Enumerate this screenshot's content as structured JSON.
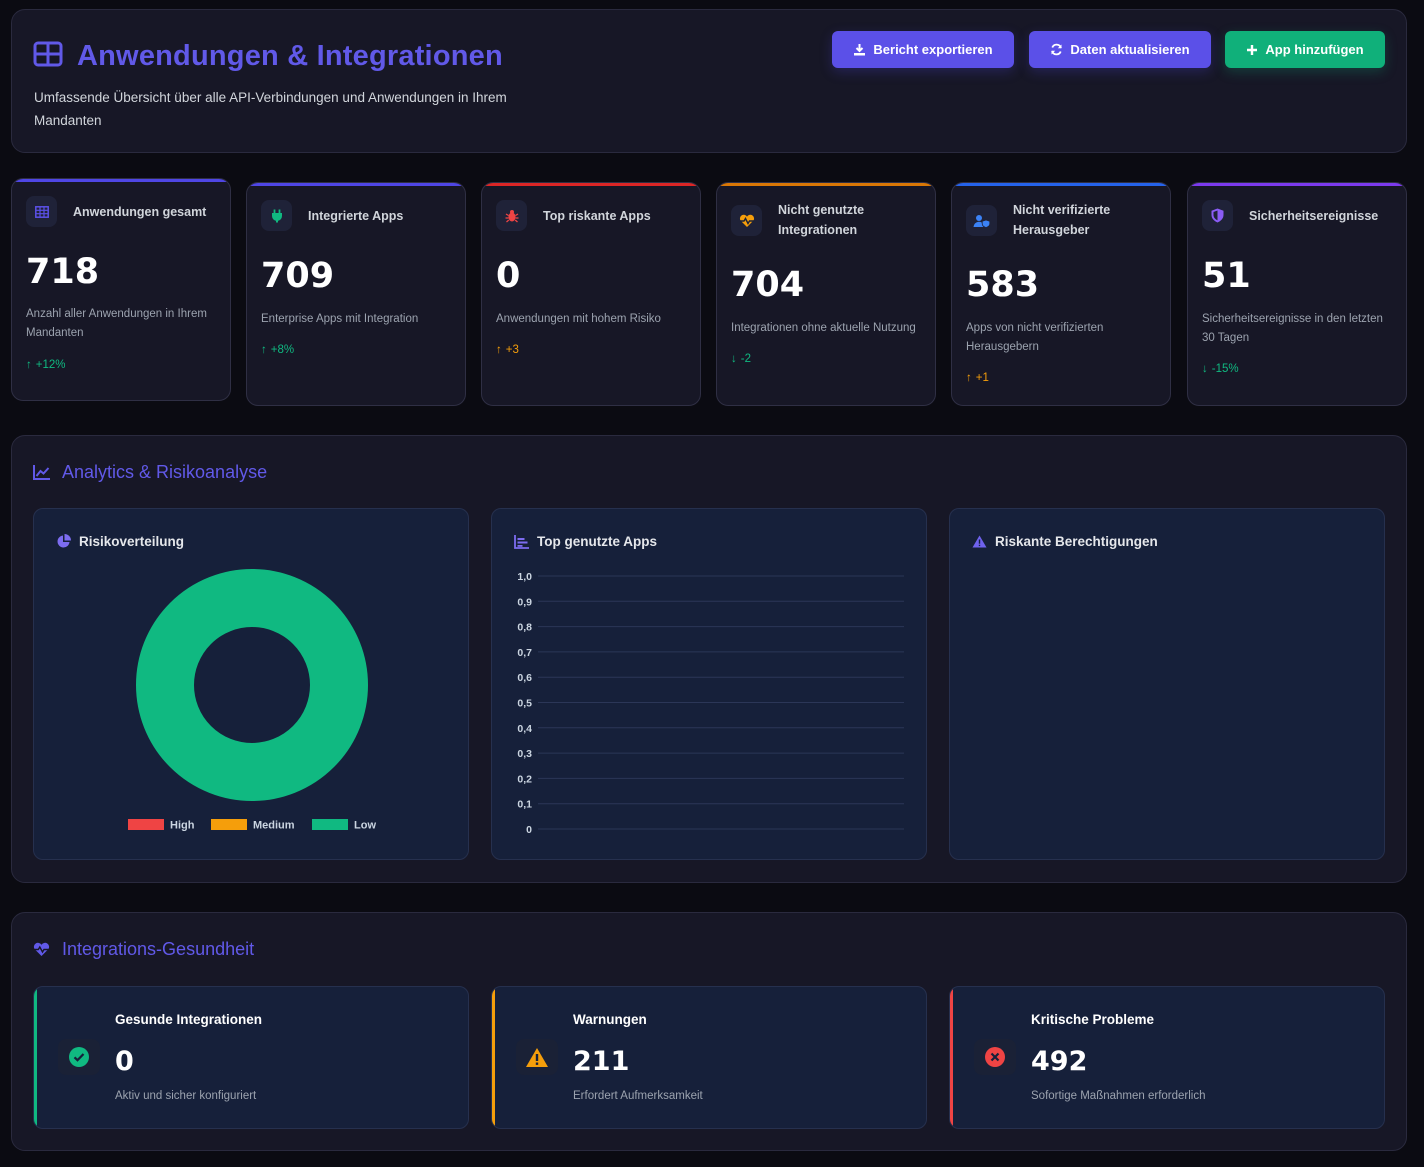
{
  "header": {
    "title": "Anwendungen & Integrationen",
    "subtitle": "Umfassende Übersicht über alle API-Verbindungen und Anwendungen in Ihrem Mandanten",
    "buttons": {
      "export": "Bericht exportieren",
      "refresh": "Daten aktualisieren",
      "add": "App hinzufügen"
    }
  },
  "stats": [
    {
      "label": "Anwendungen gesamt",
      "value": "718",
      "desc": "Anzahl aller Anwendungen in Ihrem Mandanten",
      "trend": "+12%",
      "trend_dir": "up",
      "trend_color": "#10b981",
      "accent": "#4f46e5",
      "icon": "grid-icon"
    },
    {
      "label": "Integrierte Apps",
      "value": "709",
      "desc": "Enterprise Apps mit Integration",
      "trend": "+8%",
      "trend_dir": "up",
      "trend_color": "#10b981",
      "accent": "#4f46e5",
      "icon": "plug-icon"
    },
    {
      "label": "Top riskante Apps",
      "value": "0",
      "desc": "Anwendungen mit hohem Risiko",
      "trend": "+3",
      "trend_dir": "up",
      "trend_color": "#f59e0b",
      "accent": "#dc2626",
      "icon": "bug-icon"
    },
    {
      "label": "Nicht genutzte Integrationen",
      "value": "704",
      "desc": "Integrationen ohne aktuelle Nutzung",
      "trend": "-2",
      "trend_dir": "down",
      "trend_color": "#10b981",
      "accent": "#d97706",
      "icon": "heartbeat-icon"
    },
    {
      "label": "Nicht verifizierte Herausgeber",
      "value": "583",
      "desc": "Apps von nicht verifizierten Herausgebern",
      "trend": "+1",
      "trend_dir": "up",
      "trend_color": "#f59e0b",
      "accent": "#2563eb",
      "icon": "user-shield-icon"
    },
    {
      "label": "Sicherheitsereignisse",
      "value": "51",
      "desc": "Sicherheitsereignisse in den letzten 30 Tagen",
      "trend": "-15%",
      "trend_dir": "down",
      "trend_color": "#10b981",
      "accent": "#7c3aed",
      "icon": "shield-icon"
    }
  ],
  "analytics": {
    "title": "Analytics & Risikoanalyse",
    "cards": {
      "risk": "Risikoverteilung",
      "top_apps": "Top genutzte Apps",
      "permissions": "Riskante Berechtigungen"
    }
  },
  "chart_data": [
    {
      "type": "pie",
      "title": "Risikoverteilung",
      "categories": [
        "High",
        "Medium",
        "Low"
      ],
      "values": [
        0,
        0,
        1
      ],
      "colors": [
        "#ef4444",
        "#f59e0b",
        "#10b981"
      ],
      "donut": true,
      "legend": "bottom"
    },
    {
      "type": "bar",
      "title": "Top genutzte Apps",
      "categories": [],
      "values": [],
      "ylim": [
        0,
        1.0
      ],
      "yticks": [
        "0",
        "0,1",
        "0,2",
        "0,3",
        "0,4",
        "0,5",
        "0,6",
        "0,7",
        "0,8",
        "0,9",
        "1,0"
      ],
      "grid": true
    }
  ],
  "health": {
    "title": "Integrations-Gesundheit",
    "cards": [
      {
        "title": "Gesunde Integrationen",
        "value": "0",
        "desc": "Aktiv und sicher konfiguriert",
        "color": "#10b981",
        "icon": "check-circle-icon"
      },
      {
        "title": "Warnungen",
        "value": "211",
        "desc": "Erfordert Aufmerksamkeit",
        "color": "#f59e0b",
        "icon": "warning-icon"
      },
      {
        "title": "Kritische Probleme",
        "value": "492",
        "desc": "Sofortige Maßnahmen erforderlich",
        "color": "#ef4444",
        "icon": "error-circle-icon"
      }
    ]
  }
}
